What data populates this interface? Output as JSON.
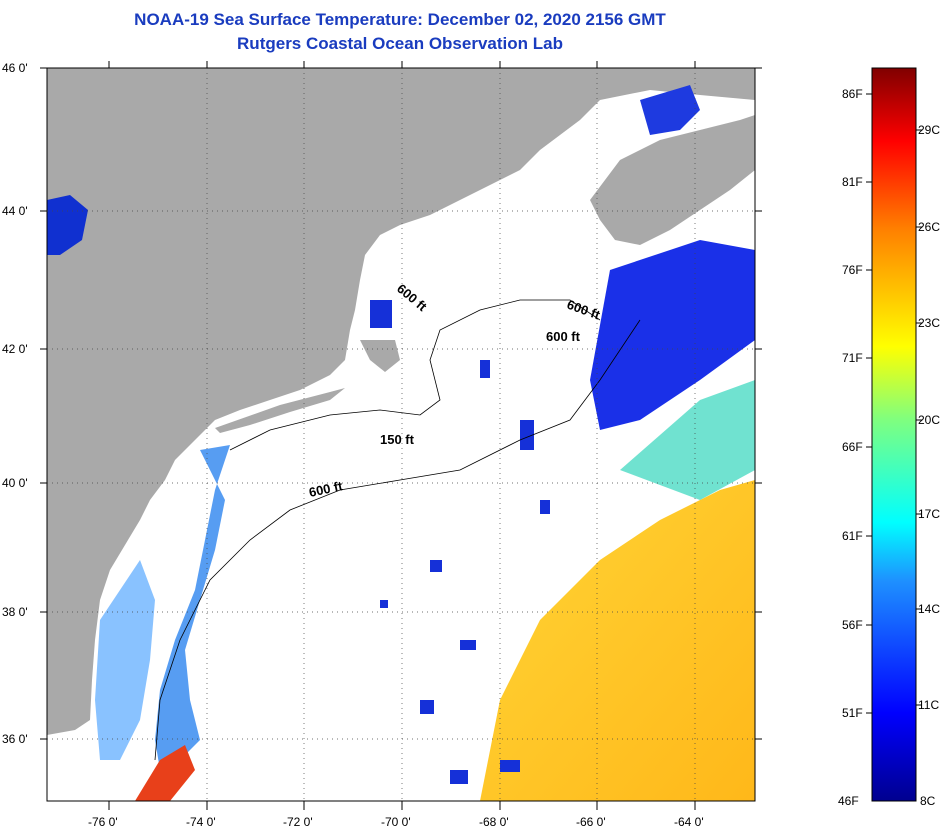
{
  "title": {
    "line1": "NOAA-19 Sea Surface Temperature:  December 02, 2020 2156 GMT",
    "line2": "Rutgers Coastal Ocean Observation Lab"
  },
  "axes": {
    "lat_labels": [
      "46 0'",
      "44 0'",
      "42 0'",
      "40 0'",
      "38 0'",
      "36 0'"
    ],
    "lon_labels": [
      "-76 0'",
      "-74 0'",
      "-72 0'",
      "-70 0'",
      "-68 0'",
      "-66 0'",
      "-64 0'"
    ]
  },
  "contours": {
    "c1": "600 ft",
    "c2": "600 ft",
    "c3": "600 ft",
    "c4": "150 ft",
    "c5": "600 ft"
  },
  "colorbar": {
    "f_labels": [
      "86F",
      "81F",
      "76F",
      "71F",
      "66F",
      "61F",
      "56F",
      "51F",
      "46F"
    ],
    "c_labels": [
      "29C",
      "26C",
      "23C",
      "20C",
      "17C",
      "14C",
      "11C",
      "8C"
    ]
  },
  "colors": {
    "land": "#a9a9a9",
    "ocean_nodata": "#ffffff",
    "title": "#1a3cbf"
  }
}
